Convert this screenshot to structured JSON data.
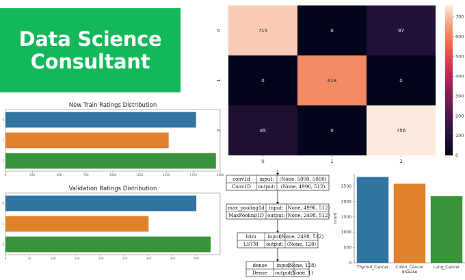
{
  "banner": {
    "line1": "Data Science",
    "line2": "Consultant",
    "color": "#12b85a"
  },
  "chart_data": [
    {
      "type": "bar",
      "orientation": "horizontal",
      "title": "New Train Ratings Distribution",
      "categories": [
        "0",
        "1",
        "2"
      ],
      "values": [
        1775,
        1520,
        1960
      ],
      "colors": [
        "#3274a1",
        "#e1812c",
        "#3a923a"
      ],
      "xlim": [
        0,
        2000
      ],
      "xticks": [
        "0",
        "250",
        "500",
        "750",
        "1000",
        "1250",
        "1500",
        "1750",
        "2000"
      ]
    },
    {
      "type": "bar",
      "orientation": "horizontal",
      "title": "Validation Ratings Distribution",
      "categories": [
        "0",
        "1",
        "2"
      ],
      "values": [
        400,
        300,
        430
      ],
      "colors": [
        "#3274a1",
        "#e1812c",
        "#3a923a"
      ],
      "xlim": [
        0,
        450
      ],
      "xticks": [
        "0",
        "50",
        "100",
        "150",
        "200",
        "250",
        "300",
        "350",
        "400"
      ]
    },
    {
      "type": "heatmap",
      "rows": [
        "0",
        "1",
        "2"
      ],
      "cols": [
        "0",
        "1",
        "2"
      ],
      "values": [
        [
          715,
          0,
          97
        ],
        [
          0,
          618,
          0
        ],
        [
          85,
          0,
          756
        ]
      ],
      "colorbar": {
        "min": 0,
        "max": 756,
        "ticks": [
          "0",
          "100",
          "200",
          "300",
          "400",
          "500",
          "600",
          "700"
        ]
      }
    },
    {
      "type": "bar",
      "categories": [
        "Thyroid_Cancer",
        "Colon_Cancer",
        "Lung_Cancer"
      ],
      "values": [
        2800,
        2580,
        2180
      ],
      "colors": [
        "#3274a1",
        "#e1812c",
        "#3a923a"
      ],
      "xlabel": "disease",
      "ylabel": "count",
      "ylim": [
        0,
        2900
      ],
      "yticks": [
        "0",
        "500",
        "1000",
        "1500",
        "2000",
        "2500"
      ]
    }
  ],
  "model_diagram": {
    "layers": [
      {
        "name": "conv1d",
        "type": "Conv1D",
        "input": "(None, 5000, 5000)",
        "output": "(None, 4996, 512)"
      },
      {
        "name": "max_pooling1d",
        "type": "MaxPooling1D",
        "input": "(None, 4996, 512)",
        "output": "(None, 2498, 512)"
      },
      {
        "name": "lstm",
        "type": "LSTM",
        "input": "(None, 2498, 512)",
        "output": "(None, 128)"
      },
      {
        "name": "dense",
        "type": "Dense",
        "input": "(None, 128)",
        "output": "(None, 1)"
      }
    ],
    "input_label": "input:",
    "output_label": "output:"
  }
}
